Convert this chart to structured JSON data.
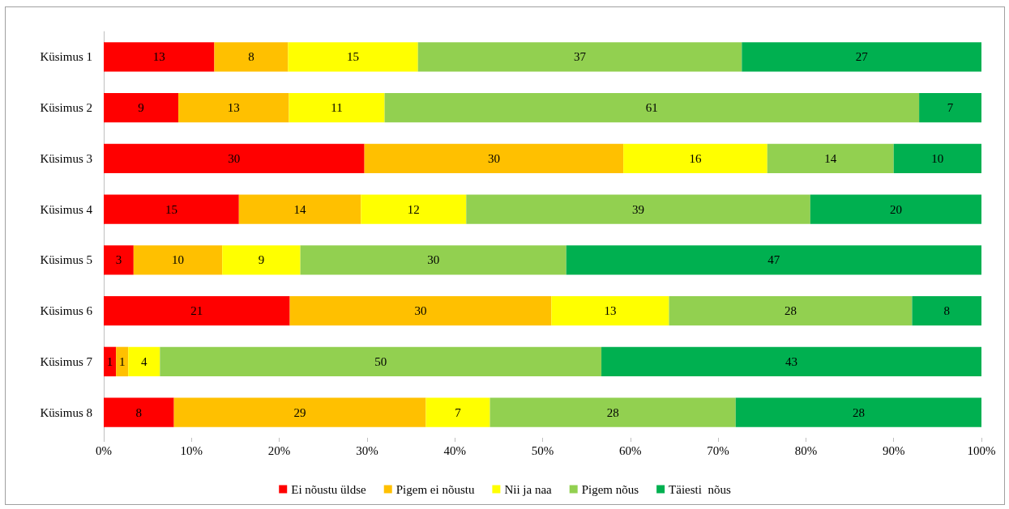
{
  "chart_data": {
    "type": "bar",
    "orientation": "horizontal",
    "stacked": true,
    "categories": [
      "Küsimus 1",
      "Küsimus 2",
      "Küsimus 3",
      "Küsimus 4",
      "Küsimus 5",
      "Küsimus 6",
      "Küsimus 7",
      "Küsimus 8"
    ],
    "series": [
      {
        "name": "Ei nõustu üldse",
        "color": "#ff0000",
        "values": [
          12.6,
          8.5,
          29.7,
          15.4,
          3.4,
          21.2,
          1.4,
          8.0
        ],
        "value_labels": [
          "13",
          "9",
          "30",
          "15",
          "3",
          "21",
          "1",
          "8"
        ]
      },
      {
        "name": "Pigem ei nõustu",
        "color": "#ffc000",
        "values": [
          8.4,
          12.6,
          29.5,
          13.9,
          10.1,
          29.8,
          1.4,
          28.7
        ],
        "value_labels": [
          "8",
          "13",
          "30",
          "14",
          "10",
          "30",
          "1",
          "29"
        ]
      },
      {
        "name": "Nii ja naa",
        "color": "#ffff00",
        "values": [
          14.8,
          10.9,
          16.4,
          12.0,
          8.9,
          13.4,
          3.6,
          7.3
        ],
        "value_labels": [
          "15",
          "11",
          "16",
          "12",
          "9",
          "13",
          "4",
          "7"
        ]
      },
      {
        "name": "Pigem nõus",
        "color": "#92d050",
        "values": [
          36.9,
          60.9,
          14.4,
          39.2,
          30.3,
          27.7,
          50.3,
          28.0
        ],
        "value_labels": [
          "37",
          "61",
          "14",
          "39",
          "30",
          "28",
          "50",
          "28"
        ]
      },
      {
        "name": "Täiesti  nõus",
        "color": "#00b050",
        "values": [
          27.3,
          7.1,
          10.0,
          19.5,
          47.3,
          7.9,
          43.3,
          28.0
        ],
        "value_labels": [
          "27",
          "7",
          "10",
          "20",
          "47",
          "8",
          "43",
          "28"
        ]
      }
    ],
    "xlim": [
      0,
      100
    ],
    "xticks": [
      {
        "value": 0,
        "label": "0%"
      },
      {
        "value": 10,
        "label": "10%"
      },
      {
        "value": 20,
        "label": "20%"
      },
      {
        "value": 30,
        "label": "30%"
      },
      {
        "value": 40,
        "label": "40%"
      },
      {
        "value": 50,
        "label": "50%"
      },
      {
        "value": 60,
        "label": "60%"
      },
      {
        "value": 70,
        "label": "70%"
      },
      {
        "value": 80,
        "label": "80%"
      },
      {
        "value": 90,
        "label": "90%"
      },
      {
        "value": 100,
        "label": "100%"
      }
    ],
    "legend": "bottom",
    "grid": false
  }
}
